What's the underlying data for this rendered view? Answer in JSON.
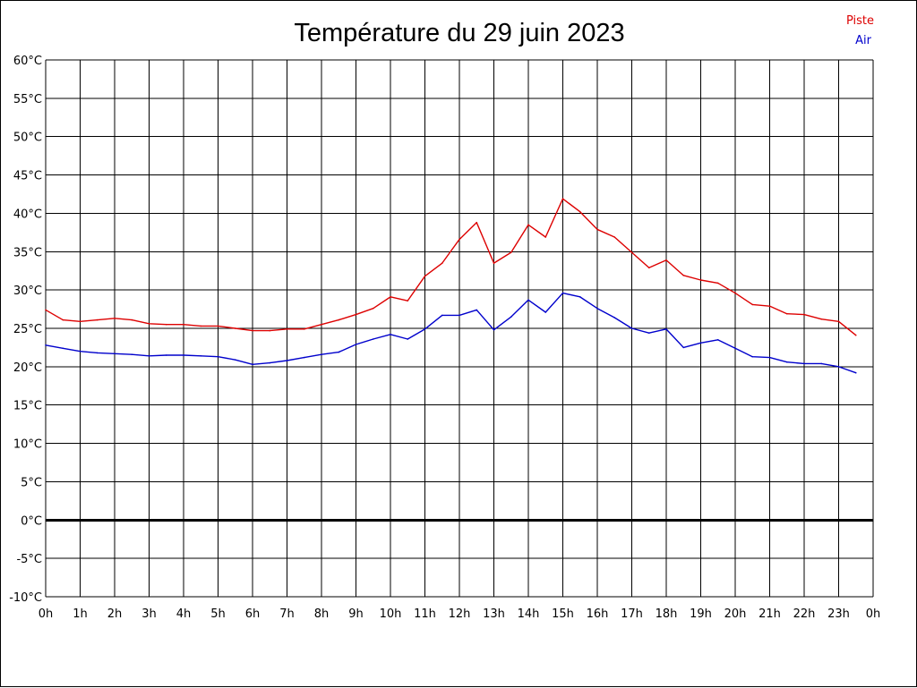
{
  "chart_data": {
    "type": "line",
    "title": "Température du 29 juin 2023",
    "xlabel": "",
    "ylabel": "",
    "ylim": [
      -10,
      60
    ],
    "y_ticks": [
      60,
      55,
      50,
      45,
      40,
      35,
      30,
      25,
      20,
      15,
      10,
      5,
      0,
      -5,
      -10
    ],
    "y_tick_labels": [
      "60°C",
      "55°C",
      "50°C",
      "45°C",
      "40°C",
      "35°C",
      "30°C",
      "25°C",
      "20°C",
      "15°C",
      "10°C",
      "5°C",
      "0°C",
      "-5°C",
      "-10°C"
    ],
    "xlim": [
      0,
      24
    ],
    "x_ticks": [
      0,
      1,
      2,
      3,
      4,
      5,
      6,
      7,
      8,
      9,
      10,
      11,
      12,
      13,
      14,
      15,
      16,
      17,
      18,
      19,
      20,
      21,
      22,
      23,
      24
    ],
    "x_tick_labels": [
      "0h",
      "1h",
      "2h",
      "3h",
      "4h",
      "5h",
      "6h",
      "7h",
      "8h",
      "9h",
      "10h",
      "11h",
      "12h",
      "13h",
      "14h",
      "15h",
      "16h",
      "17h",
      "18h",
      "19h",
      "20h",
      "21h",
      "22h",
      "23h",
      "0h"
    ],
    "grid": true,
    "legend_position": "top-right",
    "x": [
      0,
      0.5,
      1,
      1.5,
      2,
      2.5,
      3,
      3.5,
      4,
      4.5,
      5,
      5.5,
      6,
      6.5,
      7,
      7.5,
      8,
      8.5,
      9,
      9.5,
      10,
      10.5,
      11,
      11.5,
      12,
      12.5,
      13,
      13.5,
      14,
      14.5,
      15,
      15.5,
      16,
      16.5,
      17,
      17.5,
      18,
      18.5,
      19,
      19.5,
      20,
      20.5,
      21,
      21.5,
      22,
      22.5,
      23,
      23.5
    ],
    "series": [
      {
        "name": "Piste",
        "color": "#dd0000",
        "values": [
          27.4,
          26.1,
          25.9,
          26.1,
          26.3,
          26.1,
          25.6,
          25.5,
          25.5,
          25.3,
          25.3,
          25.0,
          24.7,
          24.7,
          24.9,
          24.9,
          25.5,
          26.1,
          26.8,
          27.6,
          29.1,
          28.6,
          31.8,
          33.5,
          36.6,
          38.8,
          33.5,
          34.9,
          38.5,
          36.9,
          41.9,
          40.2,
          37.9,
          36.9,
          34.9,
          32.9,
          33.9,
          31.9,
          31.3,
          30.9,
          29.6,
          28.1,
          27.9,
          26.9,
          26.8,
          26.2,
          25.9,
          24.1
        ]
      },
      {
        "name": "Air",
        "color": "#0000cc",
        "values": [
          22.8,
          22.4,
          22.0,
          21.8,
          21.7,
          21.6,
          21.4,
          21.5,
          21.5,
          21.4,
          21.3,
          20.9,
          20.3,
          20.5,
          20.8,
          21.2,
          21.6,
          21.9,
          22.9,
          23.6,
          24.2,
          23.6,
          24.9,
          26.7,
          26.7,
          27.4,
          24.8,
          26.5,
          28.7,
          27.1,
          29.6,
          29.1,
          27.6,
          26.4,
          25.0,
          24.4,
          24.9,
          22.5,
          23.1,
          23.5,
          22.4,
          21.3,
          21.2,
          20.6,
          20.4,
          20.4,
          20.0,
          19.2
        ]
      }
    ]
  }
}
